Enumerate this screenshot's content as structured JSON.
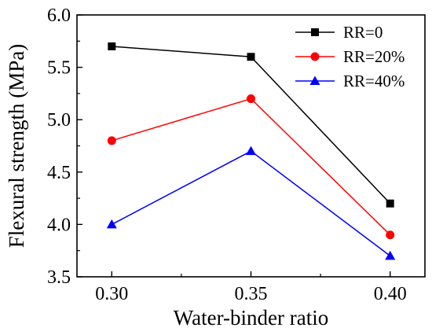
{
  "chart_data": {
    "type": "line",
    "xlabel": "Water-binder ratio",
    "ylabel": "Flexural strength (MPa)",
    "x": [
      0.3,
      0.35,
      0.4
    ],
    "x_tick_labels": [
      "0.30",
      "0.35",
      "0.40"
    ],
    "xlim": [
      0.2875,
      0.4125
    ],
    "ylim": [
      3.5,
      6.0
    ],
    "y_ticks": [
      3.5,
      4.0,
      4.5,
      5.0,
      5.5,
      6.0
    ],
    "y_tick_labels": [
      "3.5",
      "4.0",
      "4.5",
      "5.0",
      "5.5",
      "6.0"
    ],
    "grid": false,
    "legend_position": "top-right",
    "series": [
      {
        "name": "RR=0",
        "values": [
          5.7,
          5.6,
          4.2
        ],
        "color": "#000000",
        "marker": "square"
      },
      {
        "name": "RR=20%",
        "values": [
          4.8,
          5.2,
          3.9
        ],
        "color": "#ff0000",
        "marker": "circle"
      },
      {
        "name": "RR=40%",
        "values": [
          4.0,
          4.7,
          3.7
        ],
        "color": "#0000ff",
        "marker": "triangle"
      }
    ]
  }
}
